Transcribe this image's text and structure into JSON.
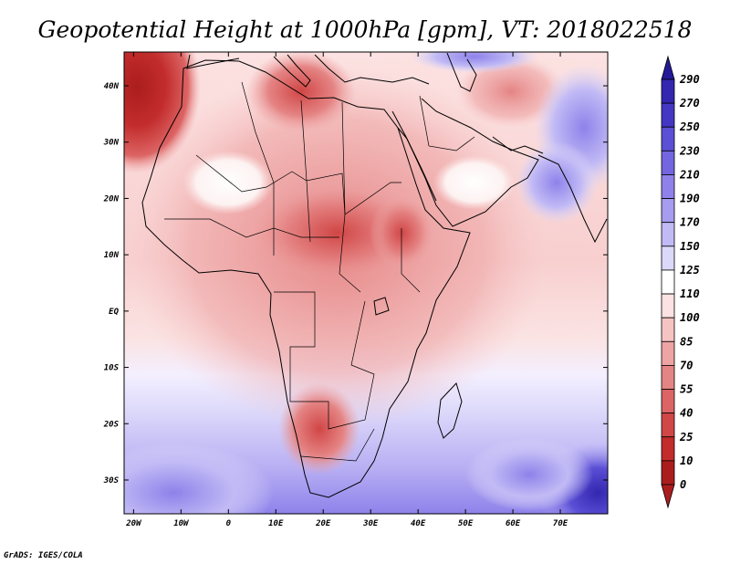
{
  "chart_data": {
    "type": "heatmap",
    "title": "Geopotential Height at 1000hPa [gpm], VT: 2018022518",
    "variable": "Geopotential Height",
    "level": "1000hPa",
    "units": "gpm",
    "valid_time": "2018022518",
    "xlabel": "",
    "ylabel": "",
    "xlim": [
      -22,
      80
    ],
    "ylim": [
      -36,
      46
    ],
    "x_ticks": [
      {
        "value": -20,
        "label": "20W"
      },
      {
        "value": -10,
        "label": "10W"
      },
      {
        "value": 0,
        "label": "0"
      },
      {
        "value": 10,
        "label": "10E"
      },
      {
        "value": 20,
        "label": "20E"
      },
      {
        "value": 30,
        "label": "30E"
      },
      {
        "value": 40,
        "label": "40E"
      },
      {
        "value": 50,
        "label": "50E"
      },
      {
        "value": 60,
        "label": "60E"
      },
      {
        "value": 70,
        "label": "70E"
      }
    ],
    "y_ticks": [
      {
        "value": 40,
        "label": "40N"
      },
      {
        "value": 30,
        "label": "30N"
      },
      {
        "value": 20,
        "label": "20N"
      },
      {
        "value": 10,
        "label": "10N"
      },
      {
        "value": 0,
        "label": "EQ"
      },
      {
        "value": -10,
        "label": "10S"
      },
      {
        "value": -20,
        "label": "20S"
      },
      {
        "value": -30,
        "label": "30S"
      }
    ],
    "colorbar": {
      "levels": [
        290,
        270,
        250,
        230,
        210,
        190,
        170,
        150,
        125,
        110,
        100,
        85,
        70,
        55,
        40,
        25,
        10,
        0
      ],
      "colors": [
        "#241a98",
        "#3327b0",
        "#4437c4",
        "#5b4fd6",
        "#7466e0",
        "#8e82ea",
        "#a69df0",
        "#c1baf5",
        "#dcd8fa",
        "#ffffff",
        "#fce2e2",
        "#f6c3c3",
        "#eea4a4",
        "#e58484",
        "#dc6464",
        "#d14646",
        "#c32c2c",
        "#ab1d1d"
      ],
      "extend": "both"
    },
    "features": [
      {
        "name": "high over eastern North Atlantic",
        "lon": -20,
        "lat": 38,
        "value_gpm": 5
      },
      {
        "name": "central Mediterranean high",
        "lon": 16,
        "lat": 40,
        "value_gpm": 20
      },
      {
        "name": "Sahel lowest-height band",
        "lon": 20,
        "lat": 10,
        "value_gpm": 45
      },
      {
        "name": "Kalahari high-pressure core",
        "lon": 20,
        "lat": -22,
        "value_gpm": 30
      },
      {
        "name": "northern Arabian Sea",
        "lon": 62,
        "lat": 20,
        "value_gpm": 120
      },
      {
        "name": "Iran/Pakistan region",
        "lon": 68,
        "lat": 33,
        "value_gpm": 150
      },
      {
        "name": "South Atlantic near 30S",
        "lon": -10,
        "lat": -32,
        "value_gpm": 190
      },
      {
        "name": "southern Indian Ocean low",
        "lon": 78,
        "lat": -33,
        "value_gpm": 260
      }
    ]
  },
  "footer": {
    "credit": "GrADS: IGES/COLA"
  }
}
